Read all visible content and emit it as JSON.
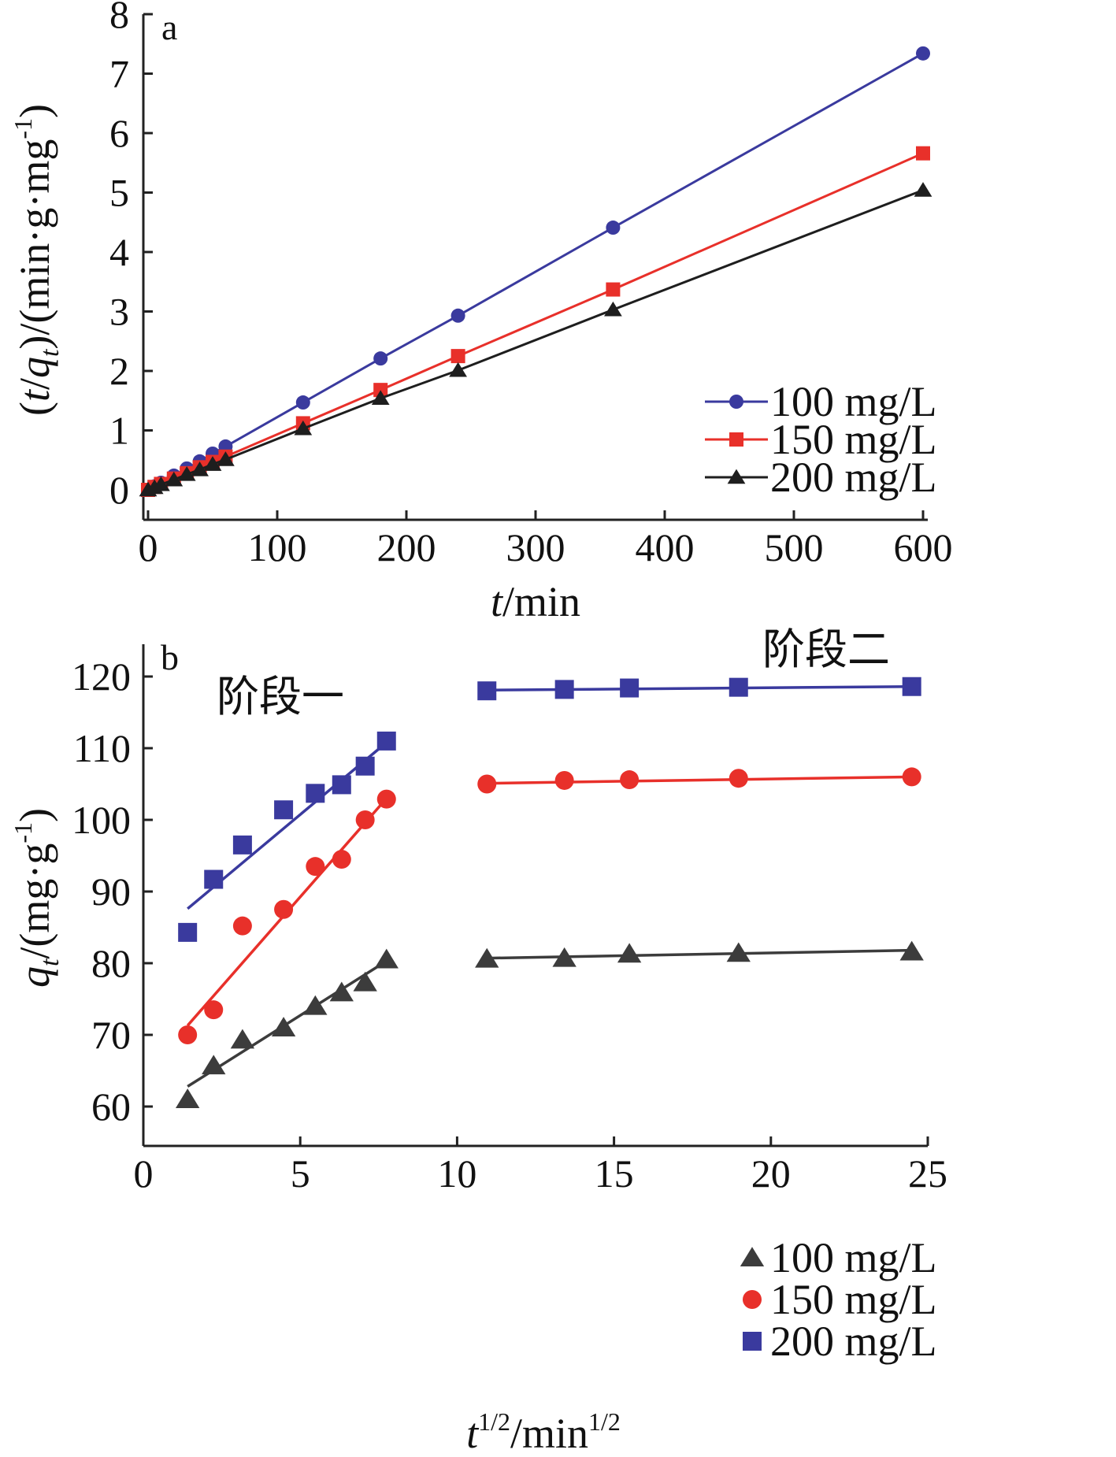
{
  "chart_data": [
    {
      "panel": "a",
      "type": "line",
      "xlabel_italic": "t",
      "xlabel_rest": "/min",
      "ylabel_parts": [
        "(",
        "t",
        "/",
        "q",
        "t",
        ")/(min·g·mg",
        "-1",
        ")"
      ],
      "xlim": [
        0,
        600
      ],
      "ylim": [
        -0.45,
        8.0
      ],
      "xticks": [
        0,
        100,
        200,
        300,
        400,
        500,
        600
      ],
      "yticks": [
        0,
        1,
        2,
        3,
        4,
        5,
        6,
        7,
        8
      ],
      "grid": false,
      "legend_position": "right, lower-middle",
      "series": [
        {
          "name": "100 mg/L",
          "color": "#3a3a9e",
          "marker": "circle",
          "x": [
            0,
            5,
            10,
            20,
            30,
            40,
            50,
            60,
            120,
            180,
            240,
            360,
            600
          ],
          "y": [
            0.0,
            0.06,
            0.12,
            0.24,
            0.36,
            0.48,
            0.61,
            0.73,
            1.47,
            2.21,
            2.93,
            4.41,
            7.34
          ]
        },
        {
          "name": "150 mg/L",
          "color": "#e8302a",
          "marker": "square",
          "x": [
            0,
            5,
            10,
            20,
            30,
            40,
            50,
            60,
            120,
            180,
            240,
            360,
            600
          ],
          "y": [
            0.0,
            0.05,
            0.1,
            0.19,
            0.28,
            0.38,
            0.47,
            0.56,
            1.12,
            1.68,
            2.25,
            3.37,
            5.66
          ]
        },
        {
          "name": "200 mg/L",
          "color": "#1e1e1e",
          "marker": "triangle",
          "x": [
            0,
            5,
            10,
            20,
            30,
            40,
            50,
            60,
            120,
            180,
            240,
            360,
            600
          ],
          "y": [
            0.0,
            0.04,
            0.09,
            0.17,
            0.26,
            0.34,
            0.43,
            0.51,
            1.03,
            1.54,
            2.01,
            3.03,
            5.04
          ]
        }
      ]
    },
    {
      "panel": "b",
      "type": "scatter",
      "xlabel_parts": [
        "t",
        "1/2",
        "/min",
        "1/2"
      ],
      "ylabel_parts": [
        "q",
        "t",
        "/(mg·g",
        "-1",
        ")"
      ],
      "xlim": [
        0,
        25
      ],
      "ylim": [
        55,
        125
      ],
      "xticks": [
        0,
        5,
        10,
        15,
        20,
        25
      ],
      "yticks": [
        60,
        70,
        80,
        90,
        100,
        110,
        120
      ],
      "grid": false,
      "legend_position": "right, bottom",
      "annotations": [
        "阶段一",
        "阶段二"
      ],
      "series": [
        {
          "name": "100 mg/L",
          "color": "#3c3c3c",
          "marker": "triangle",
          "x": [
            1.41,
            2.24,
            3.16,
            4.47,
            5.48,
            6.32,
            7.07,
            7.75,
            10.95,
            13.42,
            15.49,
            18.97,
            24.49
          ],
          "y": [
            61.0,
            65.7,
            69.3,
            71.0,
            74.0,
            75.9,
            77.3,
            80.5,
            80.6,
            80.7,
            81.3,
            81.4,
            81.6
          ],
          "fit_stage1": {
            "x": [
              1.41,
              7.75
            ],
            "y": [
              62.8,
              80.3
            ]
          },
          "fit_stage2": {
            "x": [
              10.95,
              24.49
            ],
            "y": [
              80.7,
              81.8
            ]
          }
        },
        {
          "name": "150 mg/L",
          "color": "#e8302a",
          "marker": "circle",
          "x": [
            1.41,
            2.24,
            3.16,
            4.47,
            5.48,
            6.32,
            7.07,
            7.75,
            10.95,
            13.42,
            15.49,
            18.97,
            24.49
          ],
          "y": [
            70.0,
            73.5,
            85.2,
            87.5,
            93.5,
            94.5,
            100.0,
            102.9,
            105.0,
            105.5,
            105.6,
            105.8,
            106.0
          ],
          "fit_stage1": {
            "x": [
              1.41,
              7.75
            ],
            "y": [
              71.3,
              103.0
            ]
          },
          "fit_stage2": {
            "x": [
              10.95,
              24.49
            ],
            "y": [
              105.1,
              106.0
            ]
          }
        },
        {
          "name": "200 mg/L",
          "color": "#3a3a9e",
          "marker": "square",
          "x": [
            1.41,
            2.24,
            3.16,
            4.47,
            5.48,
            6.32,
            7.07,
            7.75,
            10.95,
            13.42,
            15.49,
            18.97,
            24.49
          ],
          "y": [
            84.3,
            91.7,
            96.5,
            101.4,
            103.7,
            104.9,
            107.5,
            111.0,
            118.0,
            118.2,
            118.4,
            118.5,
            118.6
          ],
          "fit_stage1": {
            "x": [
              1.41,
              7.75
            ],
            "y": [
              87.6,
              110.8
            ]
          },
          "fit_stage2": {
            "x": [
              10.95,
              24.49
            ],
            "y": [
              118.1,
              118.6
            ]
          }
        }
      ]
    }
  ]
}
